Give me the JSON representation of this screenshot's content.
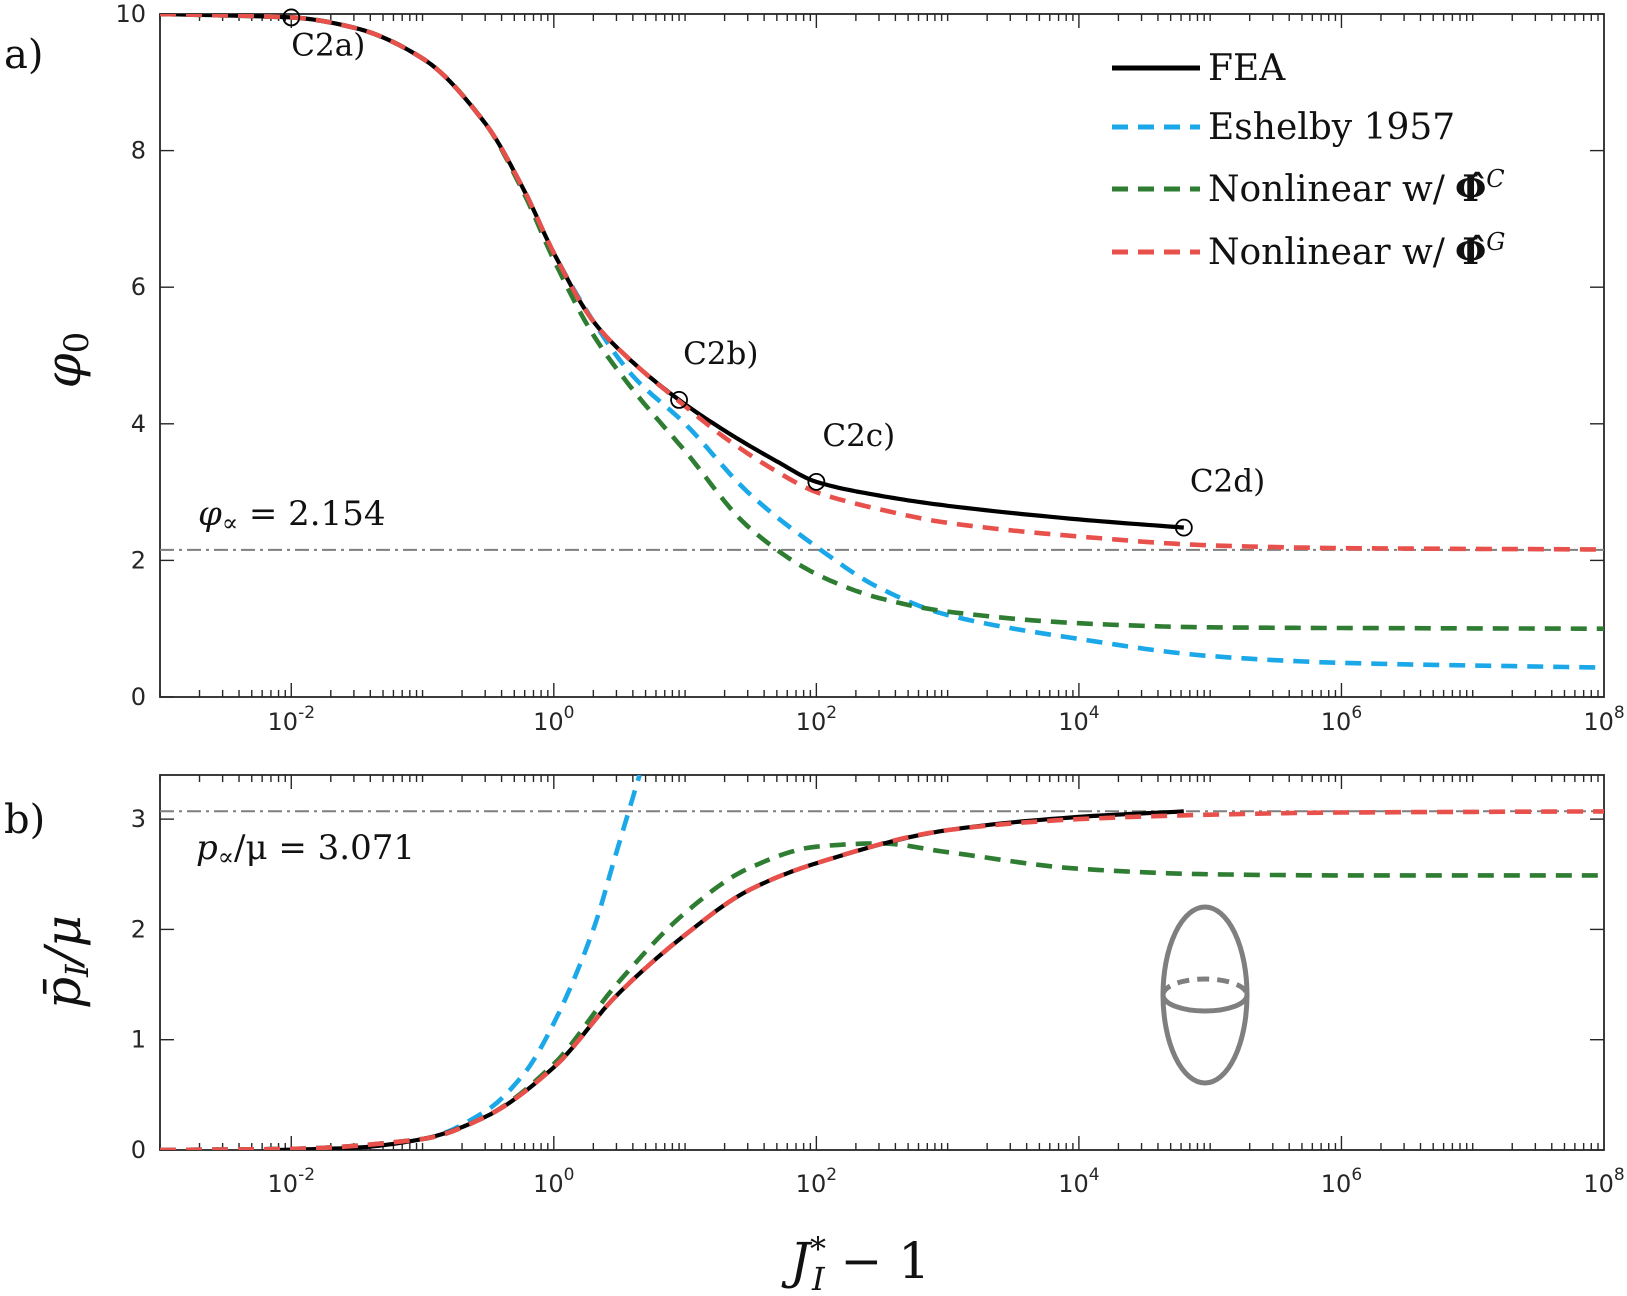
{
  "colors": {
    "fea": "#000000",
    "eshelby": "#1ba8e8",
    "nonlinear_c": "#2e7d32",
    "nonlinear_g": "#e8504b",
    "refline": "#7f7f7f",
    "inset": "#7f7f7f"
  },
  "legend": {
    "fea": "FEA",
    "eshelby": "Eshelby 1957",
    "nonlinear_c_text": "Nonlinear w/",
    "nonlinear_c_sym": "Φ̂",
    "nonlinear_c_sup": "C",
    "nonlinear_g_text": "Nonlinear w/",
    "nonlinear_g_sym": "Φ̂",
    "nonlinear_g_sup": "G"
  },
  "xaxis": {
    "label_main": "J",
    "label_sup": "*",
    "label_sub": "I",
    "label_tail": " − 1",
    "ticks": [
      {
        "base": "10",
        "exp": "-2"
      },
      {
        "base": "10",
        "exp": "0"
      },
      {
        "base": "10",
        "exp": "2"
      },
      {
        "base": "10",
        "exp": "4"
      },
      {
        "base": "10",
        "exp": "6"
      },
      {
        "base": "10",
        "exp": "8"
      }
    ]
  },
  "panel_a": {
    "label": "a)",
    "ylabel": "φ",
    "ylabel_sub": "0",
    "yticks": [
      "0",
      "2",
      "4",
      "6",
      "8",
      "10"
    ],
    "ref_label_sym": "φ",
    "ref_label_sub": "∝",
    "ref_label_tail": " = 2.154"
  },
  "panel_b": {
    "label": "b)",
    "ylabel_main": "p̄",
    "ylabel_sub": "I",
    "ylabel_tail": "/μ",
    "yticks": [
      "0",
      "1",
      "2",
      "3"
    ],
    "ref_label_main": "p",
    "ref_label_sub": "∝",
    "ref_label_tail": "/μ = 3.071"
  },
  "chart_data": [
    {
      "type": "line",
      "panel": "a",
      "xscale": "log",
      "xlim": [
        0.001,
        100000000
      ],
      "ylim": [
        0,
        10
      ],
      "grid": false,
      "legend_position": "top-right",
      "reference_line": {
        "y": 2.154,
        "label": "φ∝ = 2.154",
        "style": "dash-dot"
      },
      "annotations": [
        {
          "text": "C2a)",
          "x": 0.01,
          "y": 9.95
        },
        {
          "text": "C2b)",
          "x": 9,
          "y": 4.35
        },
        {
          "text": "C2c)",
          "x": 100,
          "y": 3.15
        },
        {
          "text": "C2d)",
          "x": 63000,
          "y": 2.48
        }
      ],
      "series": [
        {
          "name": "FEA",
          "key": "fea",
          "dash": "solid",
          "x": [
            0.001,
            0.01,
            0.03,
            0.1,
            0.3,
            0.6,
            1,
            2,
            4,
            9,
            20,
            50,
            100,
            300,
            1000,
            10000,
            63000
          ],
          "y": [
            10,
            9.95,
            9.8,
            9.35,
            8.4,
            7.4,
            6.5,
            5.5,
            4.9,
            4.35,
            3.9,
            3.45,
            3.15,
            2.95,
            2.8,
            2.6,
            2.48
          ]
        },
        {
          "name": "Eshelby 1957",
          "key": "eshelby",
          "dash": "dashed",
          "x": [
            0.001,
            0.01,
            0.03,
            0.1,
            0.3,
            0.6,
            1,
            2,
            4,
            10,
            30,
            100,
            300,
            1000,
            10000,
            100000,
            1000000,
            100000000
          ],
          "y": [
            10,
            9.95,
            9.8,
            9.35,
            8.4,
            7.4,
            6.5,
            5.5,
            4.7,
            4.0,
            3.0,
            2.2,
            1.6,
            1.2,
            0.85,
            0.6,
            0.5,
            0.43
          ]
        },
        {
          "name": "Nonlinear w/ Φ̂C",
          "key": "nonlinear_c",
          "dash": "dashed",
          "x": [
            0.001,
            0.01,
            0.03,
            0.1,
            0.3,
            0.6,
            1,
            2,
            4,
            10,
            30,
            100,
            300,
            1000,
            10000,
            100000,
            1000000,
            100000000
          ],
          "y": [
            10,
            9.95,
            9.8,
            9.35,
            8.4,
            7.35,
            6.4,
            5.3,
            4.5,
            3.6,
            2.5,
            1.8,
            1.45,
            1.25,
            1.08,
            1.02,
            1.01,
            1.0
          ]
        },
        {
          "name": "Nonlinear w/ Φ̂G",
          "key": "nonlinear_g",
          "dash": "dashed",
          "x": [
            0.001,
            0.01,
            0.03,
            0.1,
            0.3,
            0.6,
            1,
            2,
            4,
            9,
            20,
            50,
            100,
            300,
            1000,
            10000,
            100000,
            1000000,
            100000000
          ],
          "y": [
            10,
            9.95,
            9.8,
            9.35,
            8.4,
            7.4,
            6.5,
            5.5,
            4.9,
            4.33,
            3.8,
            3.3,
            3.0,
            2.75,
            2.55,
            2.35,
            2.22,
            2.18,
            2.16
          ]
        }
      ]
    },
    {
      "type": "line",
      "panel": "b",
      "xscale": "log",
      "xlim": [
        0.001,
        100000000
      ],
      "ylim": [
        0,
        3.4
      ],
      "grid": false,
      "reference_line": {
        "y": 3.071,
        "label": "p∝/μ = 3.071",
        "style": "dash-dot"
      },
      "series": [
        {
          "name": "FEA",
          "key": "fea",
          "dash": "solid",
          "x": [
            0.008,
            0.03,
            0.1,
            0.3,
            1,
            3,
            10,
            30,
            100,
            1000,
            10000,
            63000
          ],
          "y": [
            0.0,
            0.02,
            0.1,
            0.3,
            0.75,
            1.4,
            1.95,
            2.35,
            2.6,
            2.9,
            3.02,
            3.07
          ]
        },
        {
          "name": "Eshelby 1957",
          "key": "eshelby",
          "dash": "dashed",
          "x": [
            0.001,
            0.01,
            0.1,
            0.3,
            0.6,
            1,
            2,
            3,
            4.5
          ],
          "y": [
            0.0,
            0.01,
            0.1,
            0.35,
            0.7,
            1.15,
            2.0,
            2.7,
            3.4
          ]
        },
        {
          "name": "Nonlinear w/ Φ̂C",
          "key": "nonlinear_c",
          "dash": "dashed",
          "x": [
            0.001,
            0.01,
            0.1,
            0.3,
            1,
            3,
            10,
            30,
            100,
            300,
            1000,
            10000,
            100000,
            1000000,
            100000000
          ],
          "y": [
            0.0,
            0.01,
            0.1,
            0.3,
            0.78,
            1.5,
            2.15,
            2.55,
            2.75,
            2.78,
            2.7,
            2.55,
            2.5,
            2.49,
            2.49
          ]
        },
        {
          "name": "Nonlinear w/ Φ̂G",
          "key": "nonlinear_g",
          "dash": "dashed",
          "x": [
            0.001,
            0.01,
            0.1,
            0.3,
            1,
            3,
            10,
            30,
            100,
            1000,
            10000,
            100000,
            1000000,
            100000000
          ],
          "y": [
            0.0,
            0.01,
            0.1,
            0.3,
            0.75,
            1.4,
            1.95,
            2.35,
            2.6,
            2.9,
            3.0,
            3.04,
            3.06,
            3.07
          ]
        }
      ]
    }
  ]
}
